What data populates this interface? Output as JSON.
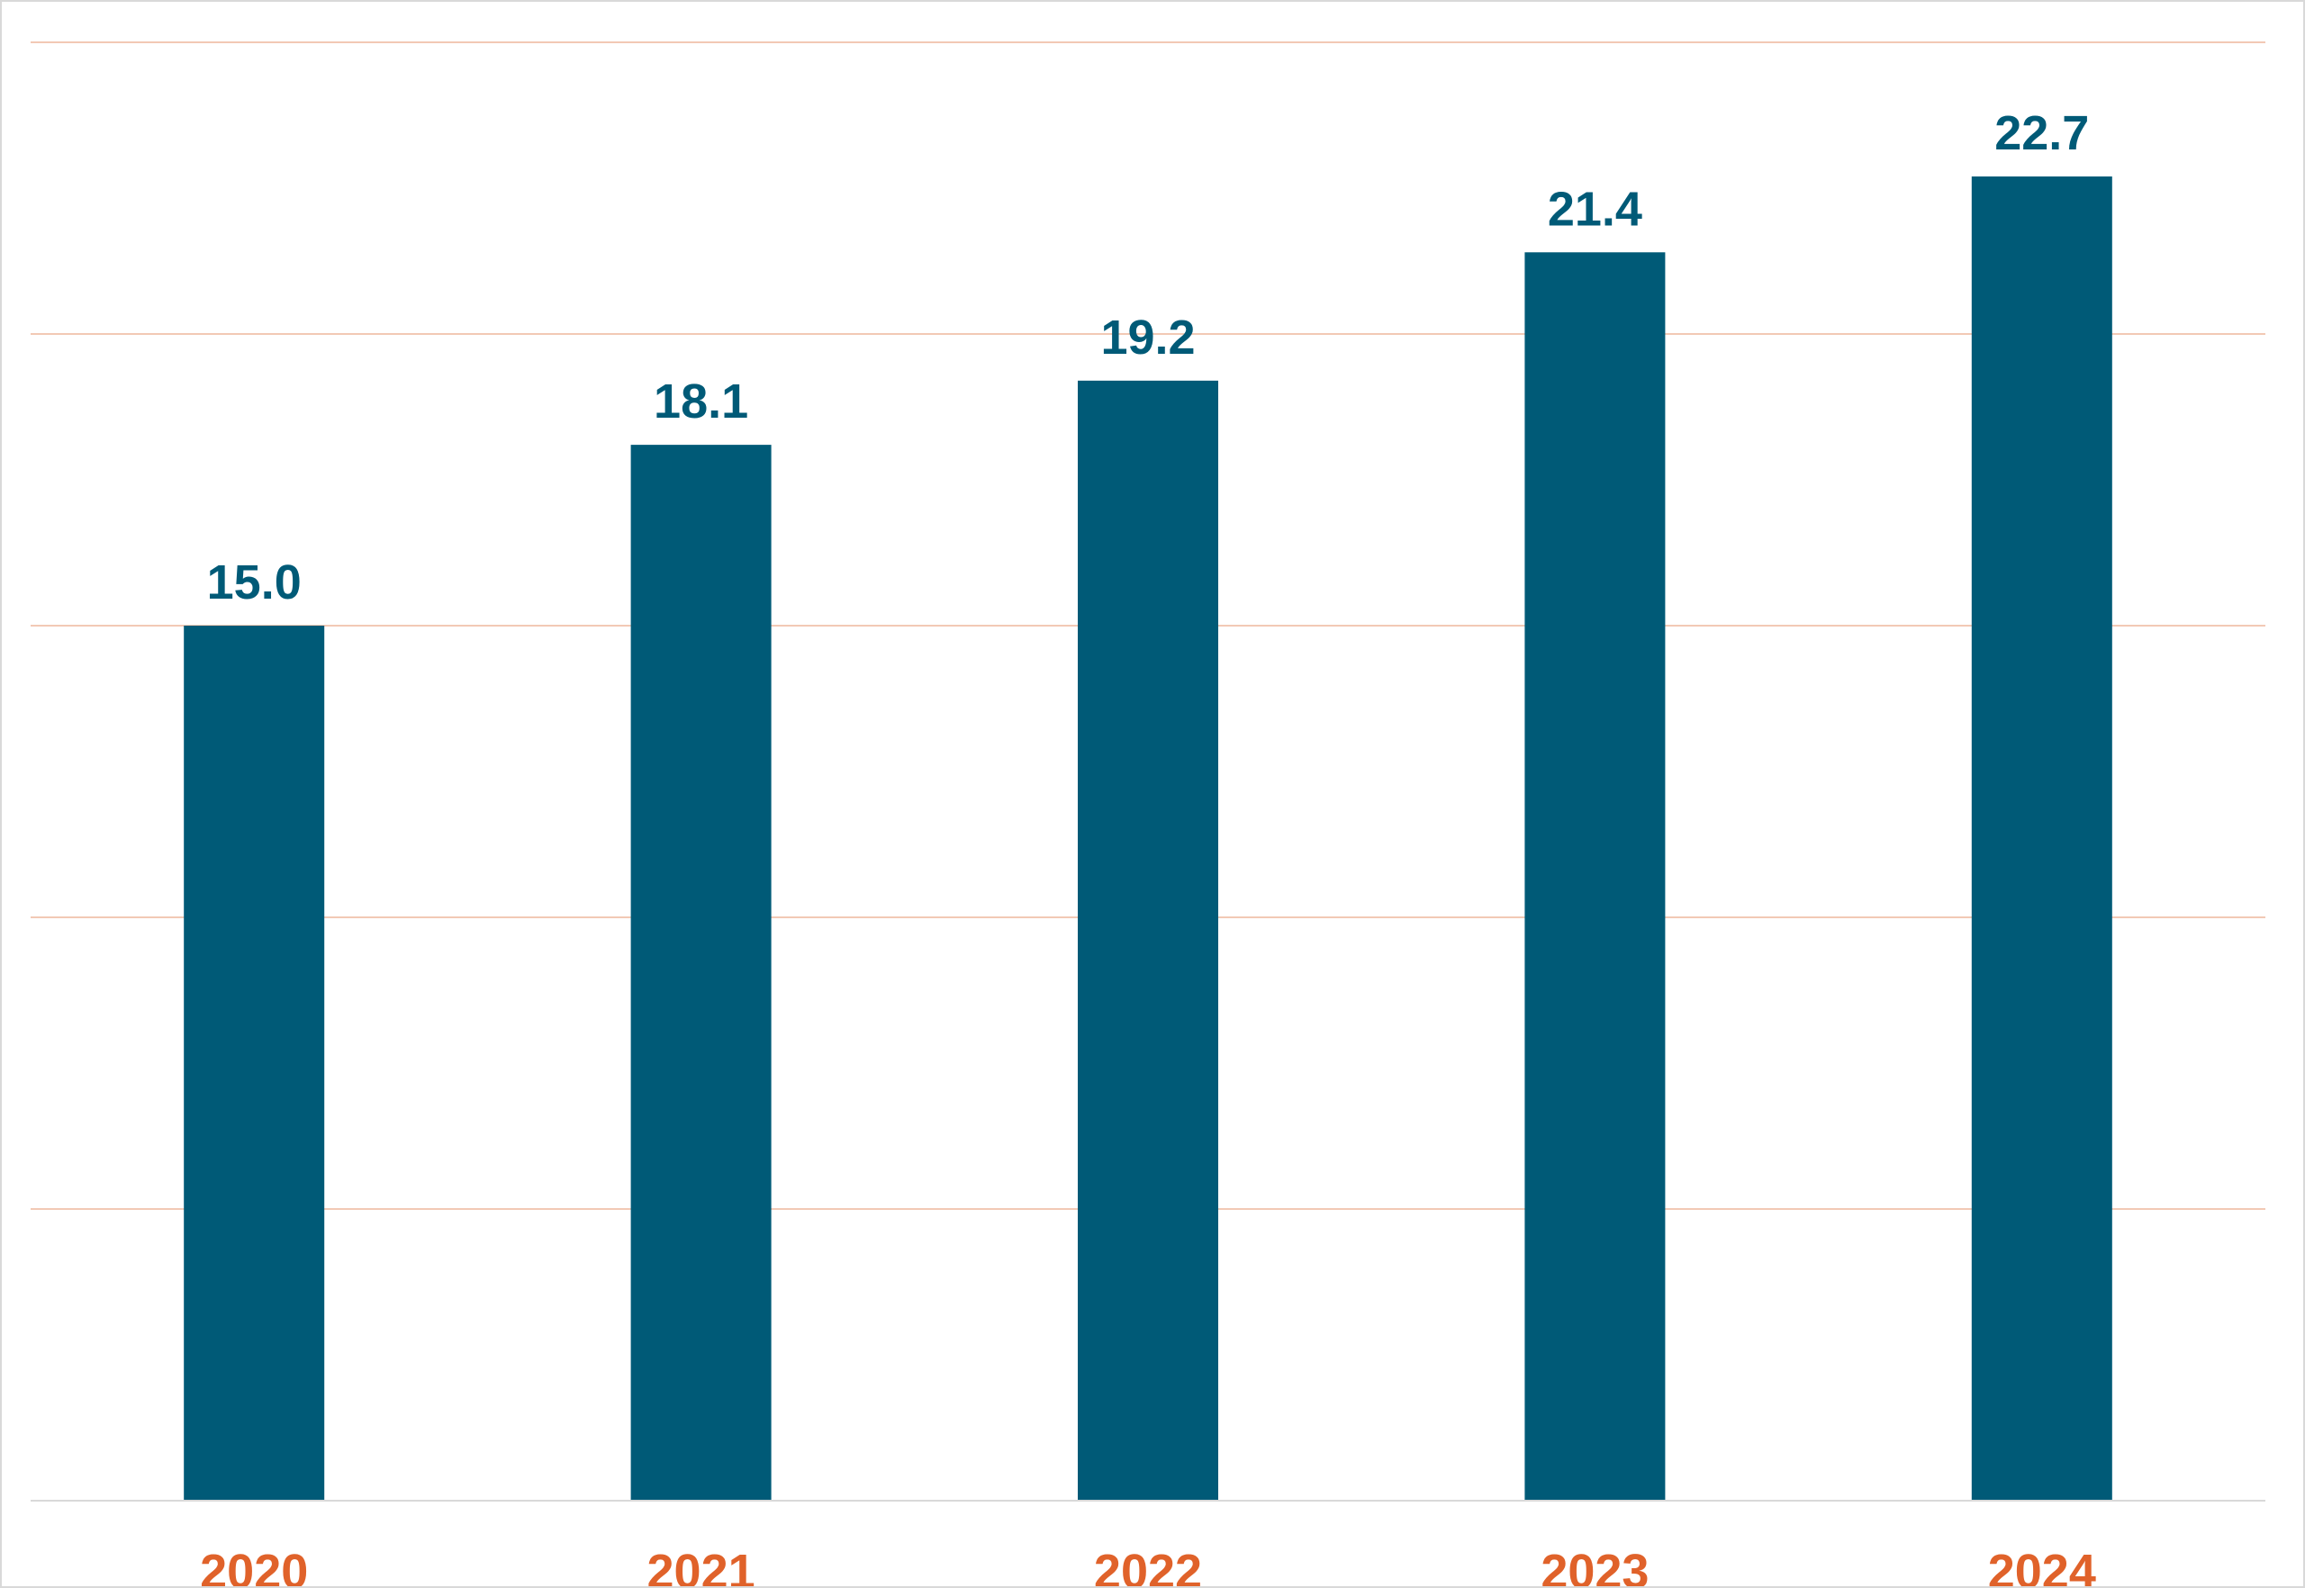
{
  "chart_data": {
    "type": "bar",
    "title": "",
    "xlabel": "",
    "ylabel": "",
    "categories": [
      "2020",
      "2021",
      "2022",
      "2023",
      "2024"
    ],
    "values": [
      15.0,
      18.1,
      19.2,
      21.4,
      22.7
    ],
    "value_labels": [
      "15.0",
      "18.1",
      "19.2",
      "21.4",
      "22.7"
    ],
    "ylim": [
      0,
      25
    ],
    "y_gridlines": [
      5,
      10,
      15,
      20,
      25
    ],
    "grid": true,
    "legend": "none",
    "colors": {
      "bar": "#005a77",
      "value_label": "#005a77",
      "category_label": "#e0622a",
      "gridline": "#f2c9b5",
      "baseline": "#d9d9d9"
    }
  }
}
